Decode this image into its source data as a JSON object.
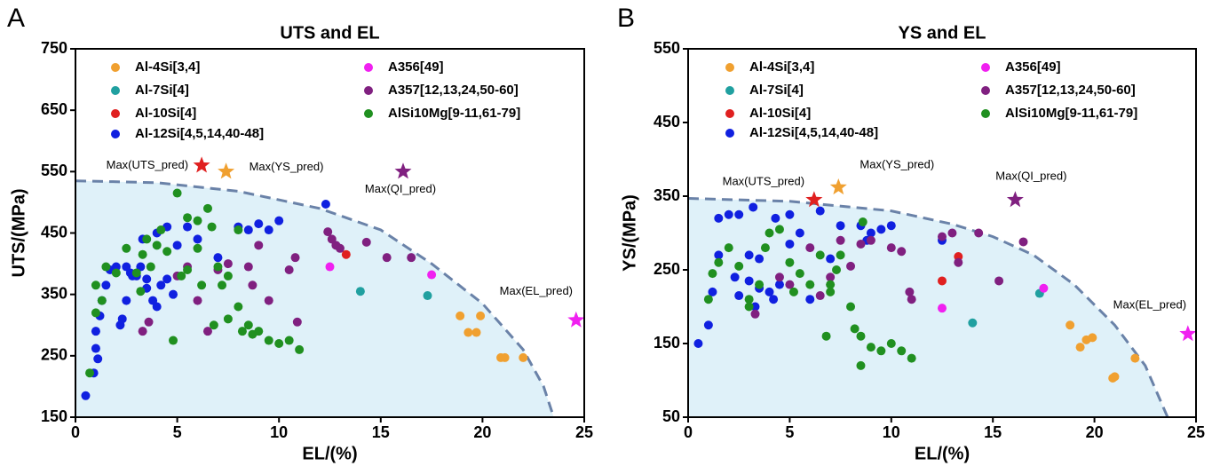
{
  "chart_data": [
    {
      "type": "scatter",
      "panel_label": "A",
      "title": "UTS and EL",
      "x_label": "EL/(%)",
      "y_label": "UTS/(MPa)",
      "xlim": [
        0,
        25
      ],
      "ylim": [
        150,
        750
      ],
      "xticks": [
        0,
        5,
        10,
        15,
        20,
        25
      ],
      "yticks": [
        150,
        250,
        350,
        450,
        550,
        650,
        750
      ],
      "series": [
        {
          "name": "Al-4Si[3,4]",
          "color": "#f0a030",
          "x": [
            18.9,
            19.3,
            19.7,
            19.9,
            20.9,
            21.1,
            22.0
          ],
          "values": [
            315,
            288,
            288,
            315,
            247,
            247,
            247
          ]
        },
        {
          "name": "Al-7Si[4]",
          "color": "#20a0a0",
          "x": [
            14.0,
            17.3
          ],
          "values": [
            355,
            348
          ]
        },
        {
          "name": "Al-10Si[4]",
          "color": "#e02020",
          "x": [
            13.3
          ],
          "values": [
            415
          ]
        },
        {
          "name": "Al-12Si[4,5,14,40-48]",
          "color": "#1020e0",
          "x": [
            0.5,
            0.9,
            1.0,
            1.1,
            1.0,
            1.2,
            1.3,
            1.5,
            1.7,
            2.0,
            2.2,
            2.3,
            2.5,
            2.5,
            2.7,
            3.0,
            3.2,
            3.5,
            3.5,
            3.8,
            4.0,
            4.2,
            4.5,
            4.0,
            4.5,
            5.0,
            5.5,
            6.0,
            7.0,
            8.0,
            8.5,
            9.0,
            9.5,
            10.0,
            12.3,
            2.8,
            3.3,
            4.8
          ],
          "values": [
            185,
            222,
            262,
            245,
            290,
            315,
            340,
            365,
            390,
            395,
            300,
            310,
            340,
            395,
            385,
            380,
            395,
            375,
            360,
            340,
            330,
            365,
            375,
            450,
            460,
            430,
            460,
            440,
            410,
            460,
            455,
            465,
            455,
            470,
            497,
            380,
            440,
            350
          ]
        },
        {
          "name": "A356[49]",
          "color": "#f020f0",
          "x": [
            12.5,
            17.5
          ],
          "values": [
            395,
            382
          ]
        },
        {
          "name": "A357[12,13,24,50-60]",
          "color": "#802080",
          "x": [
            3.3,
            3.6,
            5.5,
            6.0,
            6.5,
            7.0,
            7.5,
            8.5,
            8.7,
            9.0,
            9.5,
            10.5,
            10.8,
            10.9,
            12.4,
            12.6,
            12.8,
            13.0,
            14.3,
            15.3,
            16.5,
            5.0
          ],
          "values": [
            290,
            305,
            395,
            340,
            290,
            390,
            400,
            395,
            365,
            430,
            340,
            390,
            410,
            305,
            452,
            440,
            430,
            425,
            435,
            410,
            410,
            380
          ]
        },
        {
          "name": "AlSi10Mg[9-11,61-79]",
          "color": "#209020",
          "x": [
            0.7,
            1.0,
            1.0,
            1.3,
            1.5,
            2.0,
            2.5,
            3.0,
            3.2,
            3.3,
            3.5,
            3.7,
            4.0,
            4.2,
            4.5,
            4.8,
            5.0,
            5.2,
            5.5,
            5.5,
            6.0,
            6.0,
            6.2,
            6.5,
            6.7,
            7.0,
            7.2,
            7.5,
            8.0,
            8.0,
            8.5,
            8.7,
            9.0,
            9.5,
            10.0,
            10.5,
            11.0,
            6.8,
            7.5,
            8.2
          ],
          "values": [
            222,
            320,
            365,
            340,
            395,
            385,
            425,
            385,
            355,
            415,
            440,
            395,
            430,
            455,
            420,
            275,
            515,
            380,
            390,
            475,
            470,
            425,
            365,
            490,
            460,
            395,
            365,
            380,
            455,
            330,
            300,
            285,
            290,
            275,
            270,
            275,
            260,
            300,
            310,
            290
          ]
        }
      ],
      "boundary": {
        "x": [
          0,
          4,
          8,
          12,
          15,
          17.5,
          20,
          22,
          23,
          23.5
        ],
        "values": [
          535,
          532,
          518,
          490,
          455,
          400,
          335,
          260,
          200,
          150
        ]
      },
      "stars": [
        {
          "label": "Max(UTS_pred)",
          "x": 6.2,
          "y": 560,
          "color": "#e02020"
        },
        {
          "label": "Max(YS_pred)",
          "x": 7.4,
          "y": 550,
          "color": "#f0a030"
        },
        {
          "label": "Max(QI_pred)",
          "x": 16.1,
          "y": 550,
          "color": "#802080"
        },
        {
          "label": "Max(EL_pred)",
          "x": 24.6,
          "y": 308,
          "color": "#f020f0"
        }
      ]
    },
    {
      "type": "scatter",
      "panel_label": "B",
      "title": "YS and EL",
      "x_label": "EL/(%)",
      "y_label": "YS/(MPa)",
      "xlim": [
        0,
        25
      ],
      "ylim": [
        50,
        550
      ],
      "xticks": [
        0,
        5,
        10,
        15,
        20,
        25
      ],
      "yticks": [
        50,
        150,
        250,
        350,
        450,
        550
      ],
      "series": [
        {
          "name": "Al-4Si[3,4]",
          "color": "#f0a030",
          "x": [
            18.8,
            19.3,
            19.6,
            19.9,
            20.9,
            21.0,
            22.0
          ],
          "values": [
            175,
            145,
            155,
            158,
            103,
            105,
            130
          ]
        },
        {
          "name": "Al-7Si[4]",
          "color": "#20a0a0",
          "x": [
            14.0,
            17.3
          ],
          "values": [
            178,
            218
          ]
        },
        {
          "name": "Al-10Si[4]",
          "color": "#e02020",
          "x": [
            12.5,
            13.3
          ],
          "values": [
            235,
            268
          ]
        },
        {
          "name": "Al-12Si[4,5,14,40-48]",
          "color": "#1020e0",
          "x": [
            0.5,
            1.0,
            1.2,
            1.5,
            1.5,
            2.0,
            2.5,
            2.3,
            2.5,
            3.0,
            3.0,
            3.3,
            3.5,
            3.5,
            4.0,
            4.2,
            4.5,
            5.0,
            5.0,
            5.5,
            6.0,
            6.5,
            7.0,
            7.5,
            8.5,
            8.8,
            9.0,
            9.5,
            10.0,
            12.5,
            3.2,
            4.3
          ],
          "values": [
            150,
            175,
            220,
            270,
            320,
            325,
            325,
            240,
            215,
            235,
            270,
            200,
            225,
            265,
            220,
            210,
            230,
            285,
            325,
            300,
            210,
            330,
            265,
            310,
            310,
            290,
            300,
            305,
            310,
            290,
            335,
            320
          ]
        },
        {
          "name": "A356[49]",
          "color": "#f020f0",
          "x": [
            12.5,
            17.5
          ],
          "values": [
            198,
            225
          ]
        },
        {
          "name": "A357[12,13,24,50-60]",
          "color": "#802080",
          "x": [
            3.3,
            4.5,
            5.0,
            6.0,
            6.5,
            7.0,
            7.5,
            8.0,
            8.5,
            9.0,
            10.0,
            10.5,
            11.0,
            12.5,
            13.0,
            13.3,
            14.3,
            15.3,
            16.5,
            10.9
          ],
          "values": [
            190,
            240,
            230,
            280,
            215,
            240,
            290,
            255,
            285,
            290,
            280,
            275,
            210,
            295,
            300,
            260,
            300,
            235,
            288,
            220
          ]
        },
        {
          "name": "AlSi10Mg[9-11,61-79]",
          "color": "#209020",
          "x": [
            1.0,
            1.2,
            1.5,
            2.0,
            2.5,
            3.0,
            3.0,
            3.5,
            3.8,
            4.0,
            4.5,
            5.0,
            5.2,
            5.5,
            6.0,
            6.5,
            7.0,
            7.3,
            7.5,
            8.0,
            8.2,
            8.5,
            8.5,
            9.0,
            9.5,
            10.0,
            10.5,
            11.0,
            8.6,
            6.8,
            7.0
          ],
          "values": [
            210,
            245,
            260,
            280,
            255,
            200,
            210,
            230,
            280,
            300,
            305,
            260,
            220,
            245,
            230,
            270,
            230,
            250,
            270,
            200,
            170,
            160,
            120,
            145,
            140,
            150,
            140,
            130,
            315,
            160,
            220
          ]
        }
      ],
      "boundary": {
        "x": [
          0,
          5,
          10,
          13,
          15,
          17,
          19,
          21,
          22.5,
          23.6
        ],
        "values": [
          347,
          343,
          330,
          312,
          295,
          270,
          230,
          175,
          120,
          50
        ]
      },
      "stars": [
        {
          "label": "Max(UTS_pred)",
          "x": 6.2,
          "y": 345,
          "color": "#e02020"
        },
        {
          "label": "Max(YS_pred)",
          "x": 7.4,
          "y": 362,
          "color": "#f0a030"
        },
        {
          "label": "Max(QI_pred)",
          "x": 16.1,
          "y": 345,
          "color": "#802080"
        },
        {
          "label": "Max(EL_pred)",
          "x": 24.6,
          "y": 163,
          "color": "#f020f0"
        }
      ]
    }
  ]
}
